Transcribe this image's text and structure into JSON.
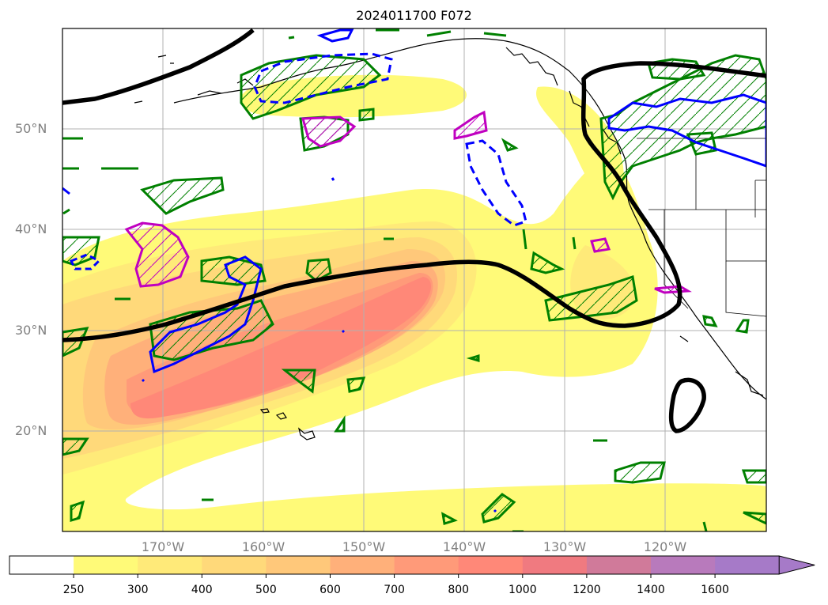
{
  "title": "2024011700 F072",
  "map": {
    "lat_labels": [
      {
        "value": 50,
        "text": "50°N"
      },
      {
        "value": 40,
        "text": "40°N"
      },
      {
        "value": 30,
        "text": "30°N"
      },
      {
        "value": 20,
        "text": "20°N"
      }
    ],
    "lon_labels": [
      {
        "value": -170,
        "text": "170°W"
      },
      {
        "value": -160,
        "text": "160°W"
      },
      {
        "value": -150,
        "text": "150°W"
      },
      {
        "value": -140,
        "text": "140°W"
      },
      {
        "value": -130,
        "text": "130°W"
      },
      {
        "value": -120,
        "text": "120°W"
      }
    ],
    "lon_range": [
      -180,
      -110
    ],
    "lat_range": [
      10,
      60
    ],
    "grid": true
  },
  "colorbar": {
    "ticks": [
      "250",
      "300",
      "400",
      "500",
      "600",
      "700",
      "800",
      "1000",
      "1200",
      "1400",
      "1600"
    ],
    "colors": [
      "#ffffff",
      "#fffa78",
      "#ffea79",
      "#ffd97a",
      "#ffc87a",
      "#ffb07a",
      "#ff9a79",
      "#ff8878",
      "#f07a80",
      "#d07a9a",
      "#b87abc",
      "#a67ac8"
    ],
    "extend": "max"
  },
  "contour_colors": {
    "thick": "#000000",
    "green": "#008000",
    "blue": "#0000ff",
    "magenta": "#c000c0",
    "land": "#000000"
  }
}
